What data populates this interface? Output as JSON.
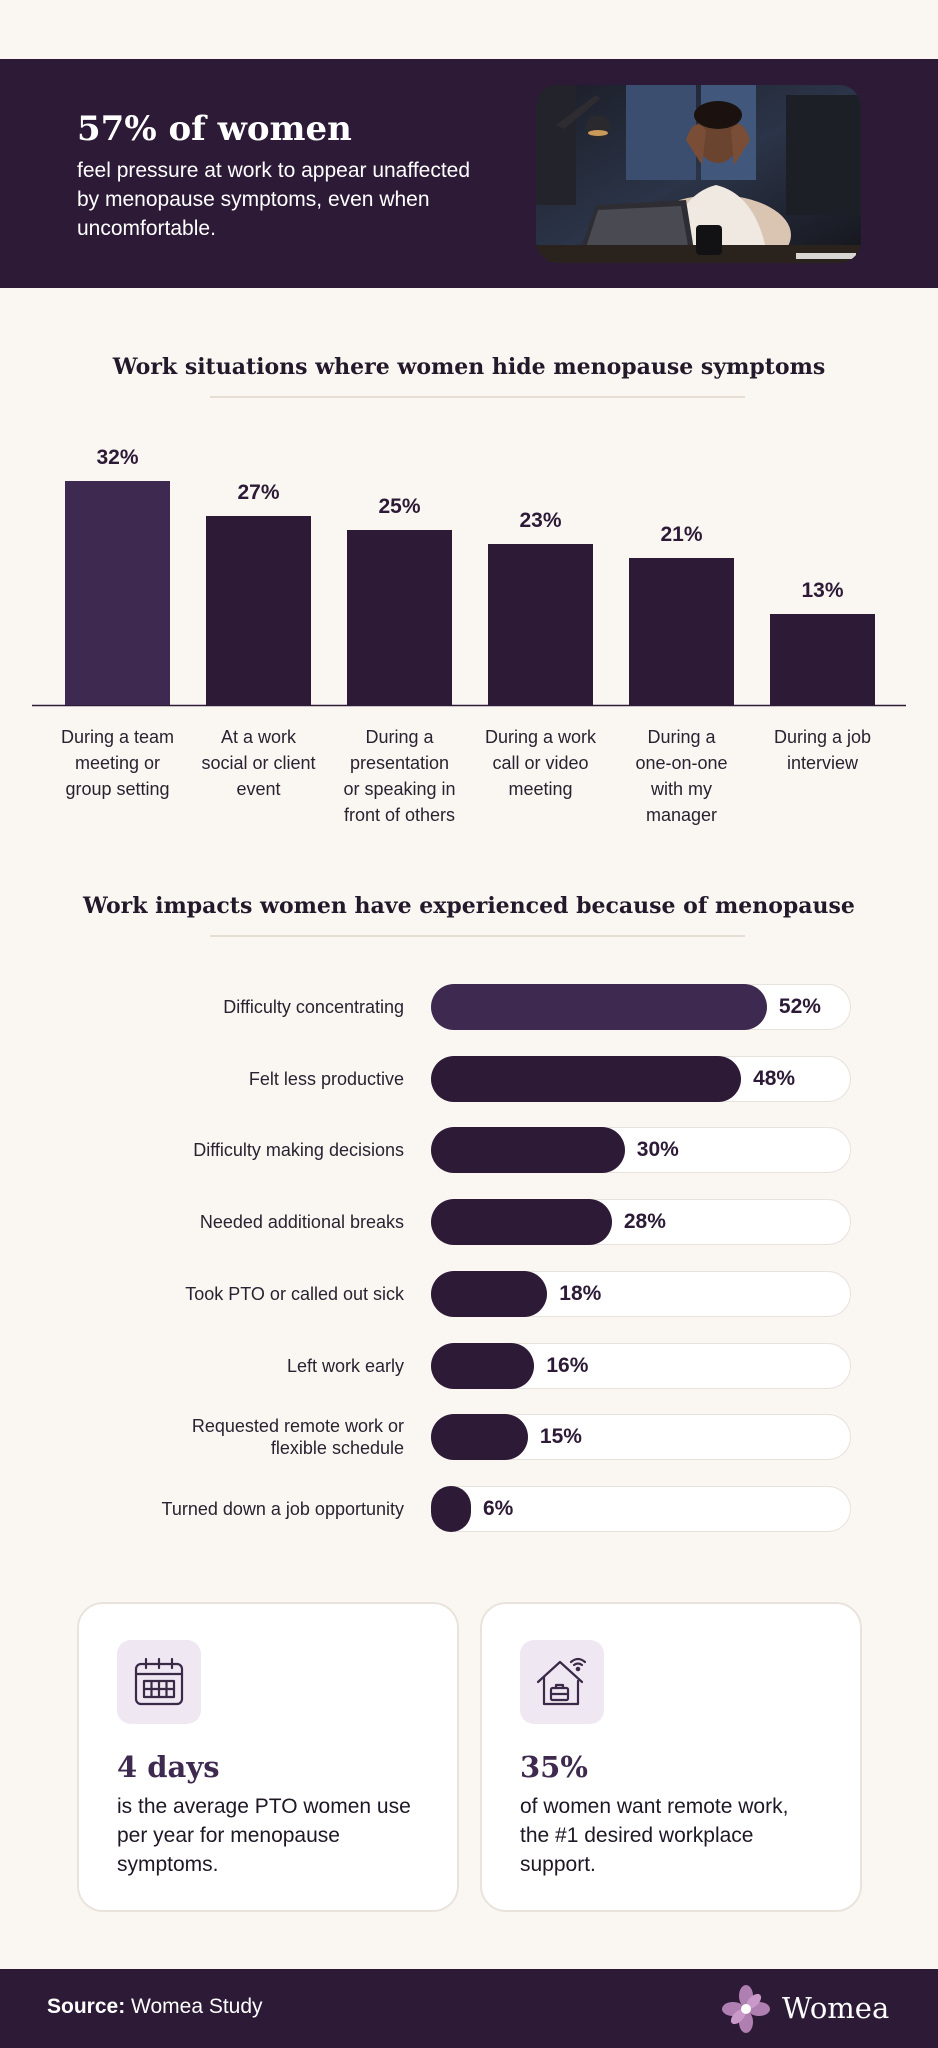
{
  "hero": {
    "title": "57% of women",
    "text": "feel pressure at work to appear unaffected by menopause symptoms, even when uncomfortable.",
    "photo_icon": "woman-at-laptop-photo"
  },
  "situations": {
    "title": "Work situations where women hide menopause symptoms"
  },
  "impacts": {
    "title": "Work impacts women have experienced because of menopause"
  },
  "chart_data": [
    {
      "type": "bar",
      "title": "Work situations where women hide menopause symptoms",
      "categories": [
        "During a team meeting or group setting",
        "At a work social or client event",
        "During a presentation or speaking in front of others",
        "During a work call or video meeting",
        "During a one-on-one with my manager",
        "During a job interview"
      ],
      "category_lines": [
        [
          "During a team",
          "meeting or",
          "group setting"
        ],
        [
          "At a work",
          "social or client",
          "event"
        ],
        [
          "During a",
          "presentation",
          "or speaking in",
          "front of others"
        ],
        [
          "During a work",
          "call or video",
          "meeting"
        ],
        [
          "During a",
          "one-on-one",
          "with my",
          "manager"
        ],
        [
          "During a job",
          "interview"
        ]
      ],
      "values": [
        32,
        27,
        25,
        23,
        21,
        13
      ],
      "value_labels": [
        "32%",
        "27%",
        "25%",
        "23%",
        "21%",
        "13%"
      ],
      "unit": "%",
      "ylim": [
        0,
        35
      ],
      "grid": false,
      "highlight_color": "#3E2A50",
      "bar_color": "#2C1A36"
    },
    {
      "type": "bar",
      "orientation": "horizontal",
      "title": "Work impacts women have experienced because of menopause",
      "categories": [
        "Difficulty concentrating",
        "Felt less productive",
        "Difficulty making decisions",
        "Needed additional breaks",
        "Took PTO or called out sick",
        "Left work early",
        "Requested remote work or flexible schedule",
        "Turned down a job opportunity"
      ],
      "category_lines": [
        [
          "Difficulty concentrating"
        ],
        [
          "Felt less productive"
        ],
        [
          "Difficulty making decisions"
        ],
        [
          "Needed additional breaks"
        ],
        [
          "Took PTO or called out sick"
        ],
        [
          "Left work early"
        ],
        [
          "Requested remote work or",
          "flexible schedule"
        ],
        [
          "Turned down a job opportunity"
        ]
      ],
      "values": [
        52,
        48,
        30,
        28,
        18,
        16,
        15,
        6
      ],
      "value_labels": [
        "52%",
        "48%",
        "30%",
        "28%",
        "18%",
        "16%",
        "15%",
        "6%"
      ],
      "unit": "%",
      "xlim": [
        0,
        65
      ],
      "highlight_color": "#3E2A50",
      "bar_color": "#2C1A36"
    }
  ],
  "cards": [
    {
      "icon": "calendar-icon",
      "number": "4 days",
      "text": "is the average PTO women use per year for menopause symptoms."
    },
    {
      "icon": "remote-work-house-icon",
      "number": "35%",
      "text": "of women want remote work, the #1 desired workplace support."
    }
  ],
  "footer": {
    "source_label": "Source:",
    "source_value": "Womea Study",
    "brand": "Womea",
    "brand_icon": "flower-logo-icon"
  },
  "colors": {
    "dark": "#2C1A36",
    "accent": "#3E2A50",
    "background": "#FAF7F3",
    "icon_bg": "#EFE7F2"
  }
}
